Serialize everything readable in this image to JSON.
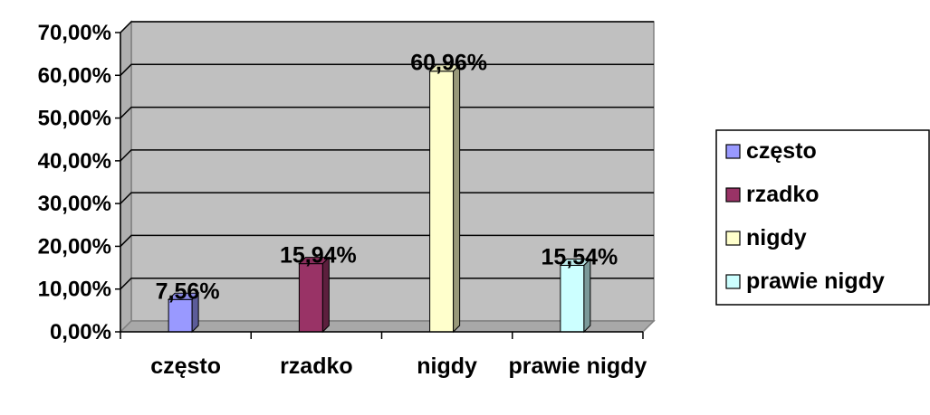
{
  "chart_data": {
    "type": "bar",
    "categories": [
      "często",
      "rzadko",
      "nigdy",
      "prawie nigdy"
    ],
    "series": [
      {
        "name": "często",
        "values": [
          7.56,
          null,
          null,
          null
        ],
        "color": "#9999ff",
        "label": "7,56%"
      },
      {
        "name": "rzadko",
        "values": [
          null,
          15.94,
          null,
          null
        ],
        "color": "#993366",
        "label": "15,94%"
      },
      {
        "name": "nigdy",
        "values": [
          null,
          null,
          60.96,
          null
        ],
        "color": "#ffffcc",
        "label": "60,96%"
      },
      {
        "name": "prawie nigdy",
        "values": [
          null,
          null,
          null,
          15.54
        ],
        "color": "#ccffff",
        "label": "15,54%"
      }
    ],
    "y_ticks": [
      "0,00%",
      "10,00%",
      "20,00%",
      "30,00%",
      "40,00%",
      "50,00%",
      "60,00%",
      "70,00%"
    ],
    "ylim": [
      0,
      70
    ],
    "grid": true,
    "plot_background": "#c0c0c0",
    "legend_position": "right",
    "title": "",
    "xlabel": "",
    "ylabel": ""
  }
}
